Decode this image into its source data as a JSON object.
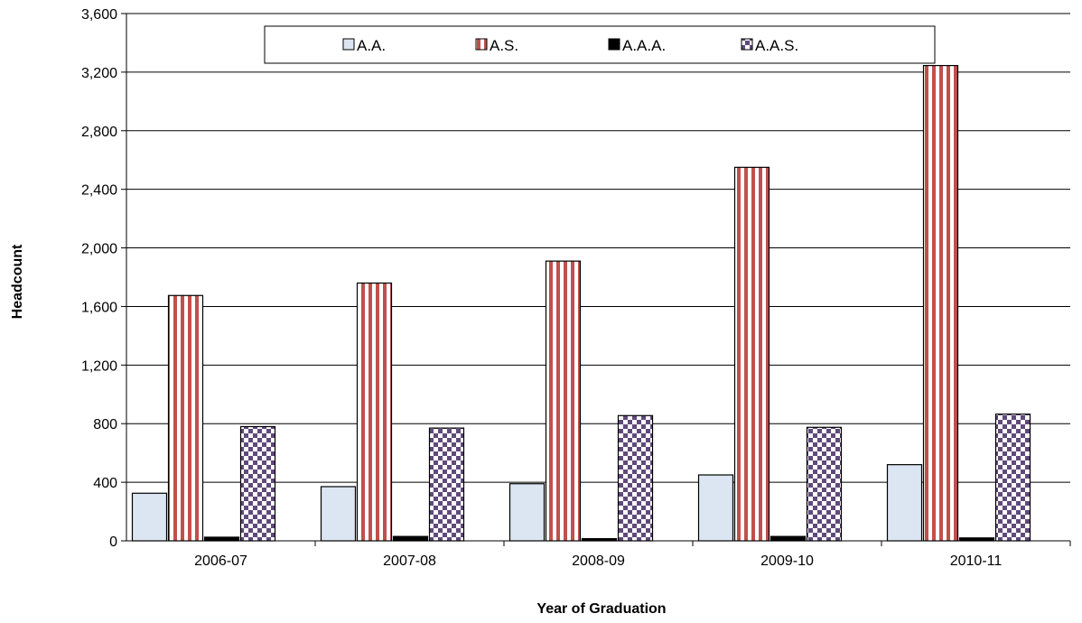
{
  "chart_data": {
    "type": "bar",
    "title": "",
    "xlabel": "Year of Graduation",
    "ylabel": "Headcount",
    "categories": [
      "2006-07",
      "2007-08",
      "2008-09",
      "2009-10",
      "2010-11"
    ],
    "series": [
      {
        "name": "A.A.",
        "values": [
          325,
          370,
          390,
          450,
          520
        ]
      },
      {
        "name": "A.S.",
        "values": [
          1675,
          1760,
          1910,
          2550,
          3245
        ]
      },
      {
        "name": "A.A.A.",
        "values": [
          25,
          30,
          15,
          30,
          20
        ]
      },
      {
        "name": "A.A.S.",
        "values": [
          780,
          770,
          855,
          775,
          865
        ]
      }
    ],
    "ylim": [
      0,
      3600
    ],
    "yticks": [
      0,
      400,
      800,
      1200,
      1600,
      2000,
      2400,
      2800,
      3200,
      3600
    ],
    "ytick_labels": [
      "0",
      "400",
      "800",
      "1,200",
      "1,600",
      "2,000",
      "2,400",
      "2,800",
      "3,200",
      "3,600"
    ],
    "grid": true,
    "legend_position": "top-center",
    "colors": {
      "A.A.": "#dce6f2",
      "A.S.": "#c0504d",
      "A.A.A.": "#000000",
      "A.A.S.": "#604a7b"
    }
  }
}
